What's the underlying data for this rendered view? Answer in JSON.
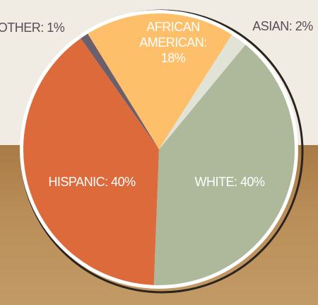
{
  "chart_data": {
    "type": "pie",
    "value_labels": [
      "WHITE: 40%",
      "HISPANIC: 40%",
      "OTHER: 1%",
      "AFRICAN AMERICAN: 18%",
      "ASIAN: 2%"
    ],
    "values": [
      40,
      40,
      1,
      18,
      2
    ],
    "colors": [
      "#adb99a",
      "#dc6a3b",
      "#6b5f6b",
      "#fdbf6a",
      "#e1e3d6"
    ]
  }
}
